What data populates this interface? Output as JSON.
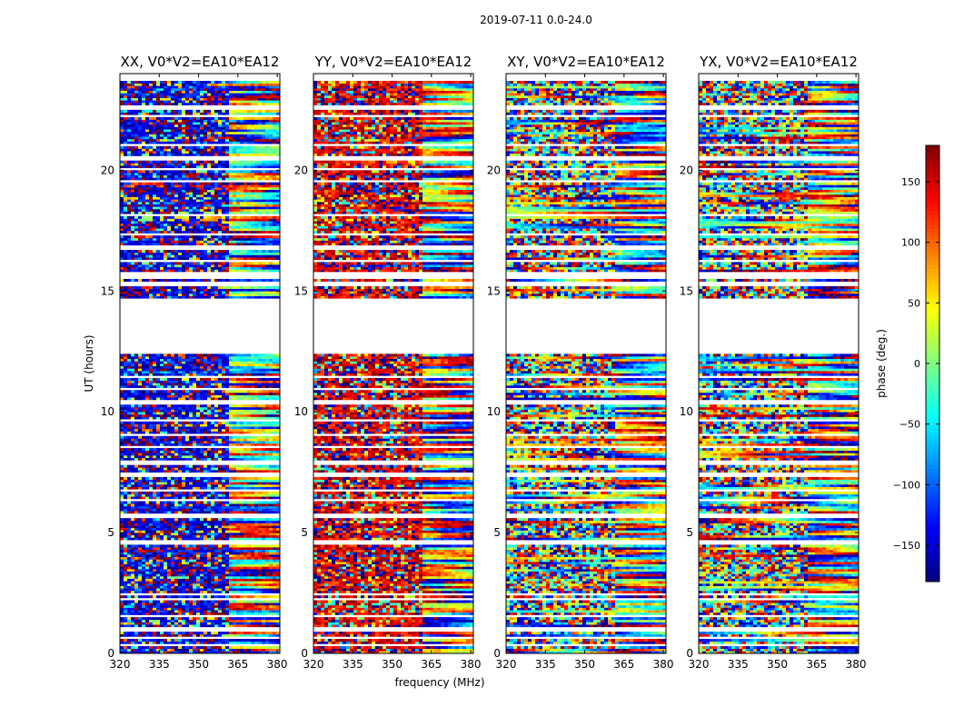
{
  "figure": {
    "suptitle": "2019-07-11 0.0-24.0"
  },
  "chart_data": {
    "type": "heatmap",
    "shared": {
      "xlabel": "frequency (MHz)",
      "ylabel": "UT (hours)",
      "xlim": [
        320,
        381
      ],
      "ylim": [
        0,
        24
      ],
      "xticks": [
        320,
        335,
        350,
        365,
        380
      ],
      "yticks": [
        0,
        5,
        10,
        15,
        20
      ],
      "colormap": "jet"
    },
    "panels": [
      {
        "title": "XX, V0*V2=EA10*EA12",
        "pol": "XX",
        "bias": -150
      },
      {
        "title": "YY, V0*V2=EA10*EA12",
        "pol": "YY",
        "bias": 150
      },
      {
        "title": "XY, V0*V2=EA10*EA12",
        "pol": "XY",
        "bias": null
      },
      {
        "title": "YX, V0*V2=EA10*EA12",
        "pol": "YX",
        "bias": null
      }
    ],
    "colorbar": {
      "label": "phase (deg.)",
      "range": [
        -180,
        180
      ],
      "ticks": [
        150,
        100,
        50,
        0,
        -50,
        -100,
        -150
      ],
      "tick_labels": [
        "150",
        "100",
        "50",
        "0",
        "−50",
        "−100",
        "−150"
      ]
    },
    "gaps_ut_hours": [
      [
        22.55,
        22.65
      ],
      [
        22.25,
        22.3
      ],
      [
        21.0,
        21.08
      ],
      [
        20.45,
        20.55
      ],
      [
        20.0,
        20.12
      ],
      [
        19.55,
        19.6
      ],
      [
        18.1,
        18.15
      ],
      [
        17.3,
        17.4
      ],
      [
        16.75,
        16.9
      ],
      [
        16.2,
        16.25
      ],
      [
        15.55,
        15.75
      ],
      [
        15.2,
        15.35
      ],
      [
        14.7,
        12.4
      ],
      [
        11.4,
        11.5
      ],
      [
        10.95,
        11.0
      ],
      [
        10.35,
        10.45
      ],
      [
        9.6,
        9.7
      ],
      [
        9.0,
        9.05
      ],
      [
        8.55,
        8.6
      ],
      [
        7.85,
        7.95
      ],
      [
        7.35,
        7.45
      ],
      [
        6.75,
        6.8
      ],
      [
        6.35,
        6.4
      ],
      [
        5.65,
        5.8
      ],
      [
        4.55,
        4.65
      ],
      [
        2.4,
        2.5
      ],
      [
        2.25,
        2.3
      ],
      [
        1.5,
        1.58
      ],
      [
        0.95,
        1.05
      ],
      [
        0.6,
        0.65
      ],
      [
        0.35,
        0.42
      ]
    ]
  }
}
